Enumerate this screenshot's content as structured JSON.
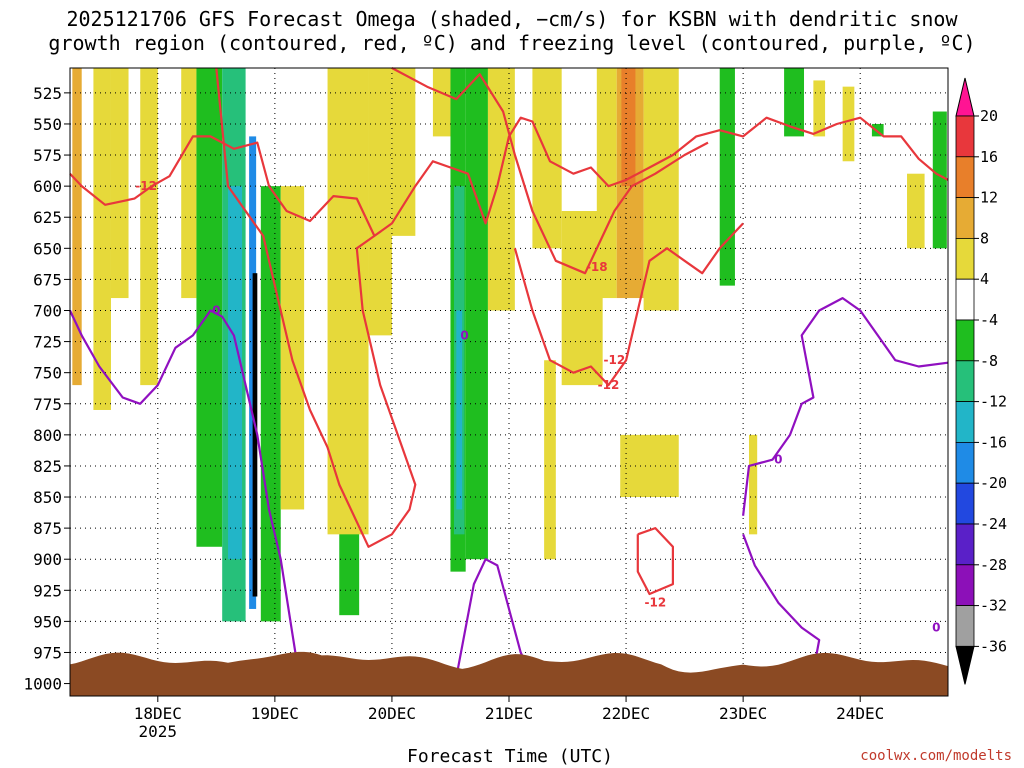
{
  "chart_data": {
    "type": "heatmap",
    "title_line1": "2025121706 GFS Forecast Omega (shaded, −cm/s) for KSBN with dendritic snow",
    "title_line2": "growth region (contoured, red, ºC) and freezing level (contoured, purple, ºC)",
    "xlabel": "Forecast Time (UTC)",
    "credit": "coolwx.com/modelts",
    "y_axis": {
      "label_values": [
        525,
        550,
        575,
        600,
        625,
        650,
        675,
        700,
        725,
        750,
        775,
        800,
        825,
        850,
        875,
        900,
        925,
        950,
        975,
        1000
      ],
      "ylim": [
        1010,
        505
      ],
      "units": "hPa"
    },
    "x_axis": {
      "labels": [
        {
          "text": "18DEC",
          "sub": "2025",
          "day": 18
        },
        {
          "text": "19DEC",
          "sub": "",
          "day": 19
        },
        {
          "text": "20DEC",
          "sub": "",
          "day": 20
        },
        {
          "text": "21DEC",
          "sub": "",
          "day": 21
        },
        {
          "text": "22DEC",
          "sub": "",
          "day": 22
        },
        {
          "text": "23DEC",
          "sub": "",
          "day": 23
        },
        {
          "text": "24DEC",
          "sub": "",
          "day": 24
        }
      ],
      "xlim": [
        17.25,
        24.75
      ]
    },
    "colorbar": {
      "labels": [
        20,
        16,
        12,
        8,
        4,
        -4,
        -8,
        -12,
        -16,
        -20,
        -24,
        -28,
        -32,
        -36
      ],
      "colors": [
        "#ff1493",
        "#e8373c",
        "#e87f2a",
        "#e6ab34",
        "#e6d93a",
        "#ffffff",
        "#1fbe1f",
        "#26c07a",
        "#22b5c8",
        "#1f8be6",
        "#2248e0",
        "#5a20c8",
        "#8c10b8",
        "#a0a0a0",
        "#000000"
      ]
    },
    "shaded_regions": [
      {
        "t0": 17.27,
        "t1": 17.35,
        "p0": 505,
        "p1": 760,
        "level": 8
      },
      {
        "t0": 17.45,
        "t1": 17.6,
        "p0": 505,
        "p1": 780,
        "level": 4
      },
      {
        "t0": 17.6,
        "t1": 17.75,
        "p0": 505,
        "p1": 690,
        "level": 4
      },
      {
        "t0": 17.85,
        "t1": 18.0,
        "p0": 505,
        "p1": 760,
        "level": 4
      },
      {
        "t0": 18.2,
        "t1": 18.33,
        "p0": 505,
        "p1": 690,
        "level": 4
      },
      {
        "t0": 18.33,
        "t1": 18.55,
        "p0": 505,
        "p1": 890,
        "level": -8
      },
      {
        "t0": 18.55,
        "t1": 18.75,
        "p0": 505,
        "p1": 950,
        "level": -12
      },
      {
        "t0": 18.6,
        "t1": 18.72,
        "p0": 600,
        "p1": 900,
        "level": -16
      },
      {
        "t0": 18.78,
        "t1": 18.84,
        "p0": 560,
        "p1": 940,
        "level": -20
      },
      {
        "t0": 18.81,
        "t1": 18.85,
        "p0": 670,
        "p1": 930,
        "level": -36
      },
      {
        "t0": 18.88,
        "t1": 19.05,
        "p0": 600,
        "p1": 950,
        "level": -8
      },
      {
        "t0": 19.05,
        "t1": 19.25,
        "p0": 600,
        "p1": 860,
        "level": 4
      },
      {
        "t0": 19.55,
        "t1": 19.72,
        "p0": 820,
        "p1": 945,
        "level": -8
      },
      {
        "t0": 19.45,
        "t1": 19.8,
        "p0": 505,
        "p1": 880,
        "level": 4
      },
      {
        "t0": 19.8,
        "t1": 20.0,
        "p0": 505,
        "p1": 720,
        "level": 4
      },
      {
        "t0": 20.0,
        "t1": 20.2,
        "p0": 505,
        "p1": 640,
        "level": 4
      },
      {
        "t0": 20.35,
        "t1": 20.55,
        "p0": 505,
        "p1": 560,
        "level": 4
      },
      {
        "t0": 20.5,
        "t1": 20.63,
        "p0": 505,
        "p1": 910,
        "level": -8
      },
      {
        "t0": 20.53,
        "t1": 20.62,
        "p0": 600,
        "p1": 880,
        "level": -12
      },
      {
        "t0": 20.55,
        "t1": 20.6,
        "p0": 700,
        "p1": 860,
        "level": -16
      },
      {
        "t0": 20.63,
        "t1": 20.82,
        "p0": 505,
        "p1": 900,
        "level": -8
      },
      {
        "t0": 20.82,
        "t1": 21.05,
        "p0": 505,
        "p1": 700,
        "level": 4
      },
      {
        "t0": 21.2,
        "t1": 21.45,
        "p0": 505,
        "p1": 650,
        "level": 4
      },
      {
        "t0": 21.3,
        "t1": 21.4,
        "p0": 740,
        "p1": 900,
        "level": 4
      },
      {
        "t0": 21.45,
        "t1": 21.8,
        "p0": 620,
        "p1": 760,
        "level": 4
      },
      {
        "t0": 21.75,
        "t1": 21.92,
        "p0": 505,
        "p1": 690,
        "level": 4
      },
      {
        "t0": 21.92,
        "t1": 22.15,
        "p0": 505,
        "p1": 690,
        "level": 8
      },
      {
        "t0": 21.96,
        "t1": 22.08,
        "p0": 505,
        "p1": 600,
        "level": 12
      },
      {
        "t0": 22.15,
        "t1": 22.45,
        "p0": 505,
        "p1": 700,
        "level": 4
      },
      {
        "t0": 21.95,
        "t1": 22.45,
        "p0": 800,
        "p1": 850,
        "level": 4
      },
      {
        "t0": 22.8,
        "t1": 22.93,
        "p0": 505,
        "p1": 680,
        "level": -8
      },
      {
        "t0": 23.05,
        "t1": 23.12,
        "p0": 800,
        "p1": 880,
        "level": 4
      },
      {
        "t0": 23.35,
        "t1": 23.52,
        "p0": 505,
        "p1": 560,
        "level": -8
      },
      {
        "t0": 23.6,
        "t1": 23.7,
        "p0": 515,
        "p1": 560,
        "level": 4
      },
      {
        "t0": 23.85,
        "t1": 23.95,
        "p0": 520,
        "p1": 580,
        "level": 4
      },
      {
        "t0": 24.1,
        "t1": 24.2,
        "p0": 550,
        "p1": 560,
        "level": -8
      },
      {
        "t0": 24.4,
        "t1": 24.55,
        "p0": 590,
        "p1": 650,
        "level": 4
      },
      {
        "t0": 24.62,
        "t1": 24.74,
        "p0": 540,
        "p1": 650,
        "level": -8
      }
    ],
    "contours": [
      {
        "name": "dendritic-minus12-upper",
        "color": "#e8373c",
        "label": "-12",
        "label_at": [
          17.9,
          600
        ],
        "points": [
          [
            17.25,
            590
          ],
          [
            17.35,
            600
          ],
          [
            17.55,
            615
          ],
          [
            17.8,
            610
          ],
          [
            17.95,
            600
          ],
          [
            18.1,
            592
          ],
          [
            18.3,
            560
          ],
          [
            18.45,
            560
          ],
          [
            18.65,
            570
          ],
          [
            18.85,
            565
          ],
          [
            18.95,
            600
          ],
          [
            19.1,
            620
          ],
          [
            19.3,
            628
          ],
          [
            19.5,
            608
          ],
          [
            19.7,
            610
          ],
          [
            19.85,
            640
          ],
          [
            20.0,
            630
          ],
          [
            20.2,
            600
          ],
          [
            20.35,
            580
          ],
          [
            20.5,
            585
          ],
          [
            20.65,
            590
          ],
          [
            20.8,
            630
          ],
          [
            20.9,
            600
          ],
          [
            21.0,
            560
          ],
          [
            21.1,
            545
          ],
          [
            21.2,
            548
          ],
          [
            21.35,
            580
          ],
          [
            21.55,
            590
          ],
          [
            21.7,
            585
          ],
          [
            21.85,
            600
          ],
          [
            22.0,
            595
          ],
          [
            22.2,
            585
          ],
          [
            22.4,
            575
          ],
          [
            22.6,
            560
          ],
          [
            22.8,
            555
          ],
          [
            23.0,
            560
          ],
          [
            23.2,
            545
          ],
          [
            23.4,
            552
          ],
          [
            23.6,
            558
          ],
          [
            23.8,
            550
          ],
          [
            24.0,
            545
          ],
          [
            24.2,
            560
          ],
          [
            24.35,
            560
          ],
          [
            24.5,
            578
          ],
          [
            24.65,
            590
          ],
          [
            24.75,
            595
          ]
        ]
      },
      {
        "name": "dendritic-minus18",
        "color": "#e8373c",
        "label": "-18",
        "label_at": [
          21.75,
          665
        ],
        "points": [
          [
            20.0,
            505
          ],
          [
            20.3,
            520
          ],
          [
            20.55,
            530
          ],
          [
            20.75,
            510
          ],
          [
            20.95,
            540
          ],
          [
            21.05,
            575
          ],
          [
            21.2,
            620
          ],
          [
            21.4,
            660
          ],
          [
            21.65,
            670
          ],
          [
            21.8,
            640
          ],
          [
            21.9,
            620
          ],
          [
            22.05,
            600
          ],
          [
            22.25,
            590
          ],
          [
            22.5,
            575
          ],
          [
            22.7,
            565
          ]
        ]
      },
      {
        "name": "dendritic-minus12-lower",
        "color": "#e8373c",
        "label": "-12",
        "label_at": [
          21.85,
          760
        ],
        "points": [
          [
            18.5,
            505
          ],
          [
            18.6,
            600
          ],
          [
            18.75,
            620
          ],
          [
            18.9,
            640
          ],
          [
            19.05,
            700
          ],
          [
            19.15,
            740
          ],
          [
            19.3,
            780
          ],
          [
            19.45,
            810
          ],
          [
            19.55,
            840
          ],
          [
            19.7,
            870
          ],
          [
            19.8,
            890
          ],
          [
            20.0,
            880
          ],
          [
            20.15,
            860
          ],
          [
            20.2,
            840
          ],
          [
            20.05,
            800
          ],
          [
            19.9,
            760
          ],
          [
            19.75,
            700
          ],
          [
            19.7,
            650
          ],
          [
            19.85,
            640
          ]
        ]
      },
      {
        "name": "dendritic-minus12-mid",
        "color": "#e8373c",
        "label": "-12",
        "label_at": [
          21.9,
          740
        ],
        "points": [
          [
            21.05,
            650
          ],
          [
            21.2,
            700
          ],
          [
            21.35,
            740
          ],
          [
            21.55,
            750
          ],
          [
            21.7,
            745
          ],
          [
            21.85,
            760
          ],
          [
            22.0,
            740
          ],
          [
            22.1,
            700
          ],
          [
            22.2,
            660
          ],
          [
            22.35,
            650
          ],
          [
            22.5,
            660
          ],
          [
            22.65,
            670
          ],
          [
            22.8,
            650
          ],
          [
            23.0,
            630
          ]
        ]
      },
      {
        "name": "dendritic-minus12-lowbox",
        "color": "#e8373c",
        "label": "-12",
        "label_at": [
          22.25,
          935
        ],
        "points": [
          [
            22.1,
            880
          ],
          [
            22.25,
            875
          ],
          [
            22.4,
            890
          ],
          [
            22.4,
            920
          ],
          [
            22.2,
            928
          ],
          [
            22.1,
            910
          ],
          [
            22.1,
            880
          ]
        ]
      },
      {
        "name": "freezing-level-0",
        "color": "#9010c0",
        "label": "0",
        "label_at": [
          18.5,
          700
        ],
        "points": [
          [
            17.25,
            700
          ],
          [
            17.35,
            720
          ],
          [
            17.5,
            745
          ],
          [
            17.7,
            770
          ],
          [
            17.85,
            775
          ],
          [
            18.0,
            760
          ],
          [
            18.15,
            730
          ],
          [
            18.3,
            720
          ],
          [
            18.45,
            700
          ],
          [
            18.55,
            705
          ],
          [
            18.65,
            720
          ],
          [
            18.75,
            760
          ],
          [
            18.85,
            800
          ],
          [
            18.95,
            860
          ],
          [
            19.05,
            900
          ],
          [
            19.15,
            960
          ],
          [
            19.2,
            990
          ]
        ]
      },
      {
        "name": "freezing-level-0-mid",
        "color": "#9010c0",
        "label": "0",
        "label_at": [
          20.62,
          720
        ],
        "points": [
          [
            20.55,
            995
          ],
          [
            20.62,
            960
          ],
          [
            20.7,
            920
          ],
          [
            20.8,
            900
          ],
          [
            20.9,
            905
          ],
          [
            21.0,
            940
          ],
          [
            21.1,
            975
          ],
          [
            21.2,
            995
          ]
        ]
      },
      {
        "name": "freezing-level-0-right",
        "color": "#9010c0",
        "label": "0",
        "label_at": [
          23.3,
          820
        ],
        "points": [
          [
            23.0,
            865
          ],
          [
            23.05,
            825
          ],
          [
            23.25,
            820
          ],
          [
            23.4,
            800
          ],
          [
            23.5,
            775
          ],
          [
            23.6,
            770
          ],
          [
            23.5,
            720
          ],
          [
            23.65,
            700
          ],
          [
            23.85,
            690
          ],
          [
            24.0,
            700
          ],
          [
            24.15,
            720
          ],
          [
            24.3,
            740
          ],
          [
            24.5,
            745
          ],
          [
            24.75,
            742
          ]
        ]
      },
      {
        "name": "freezing-level-0-lowright",
        "color": "#9010c0",
        "label": "0",
        "label_at": [
          24.65,
          955
        ],
        "points": [
          [
            23.0,
            880
          ],
          [
            23.1,
            905
          ],
          [
            23.3,
            935
          ],
          [
            23.5,
            955
          ],
          [
            23.65,
            965
          ],
          [
            23.6,
            990
          ]
        ]
      }
    ],
    "terrain_top_hpa": 982
  }
}
